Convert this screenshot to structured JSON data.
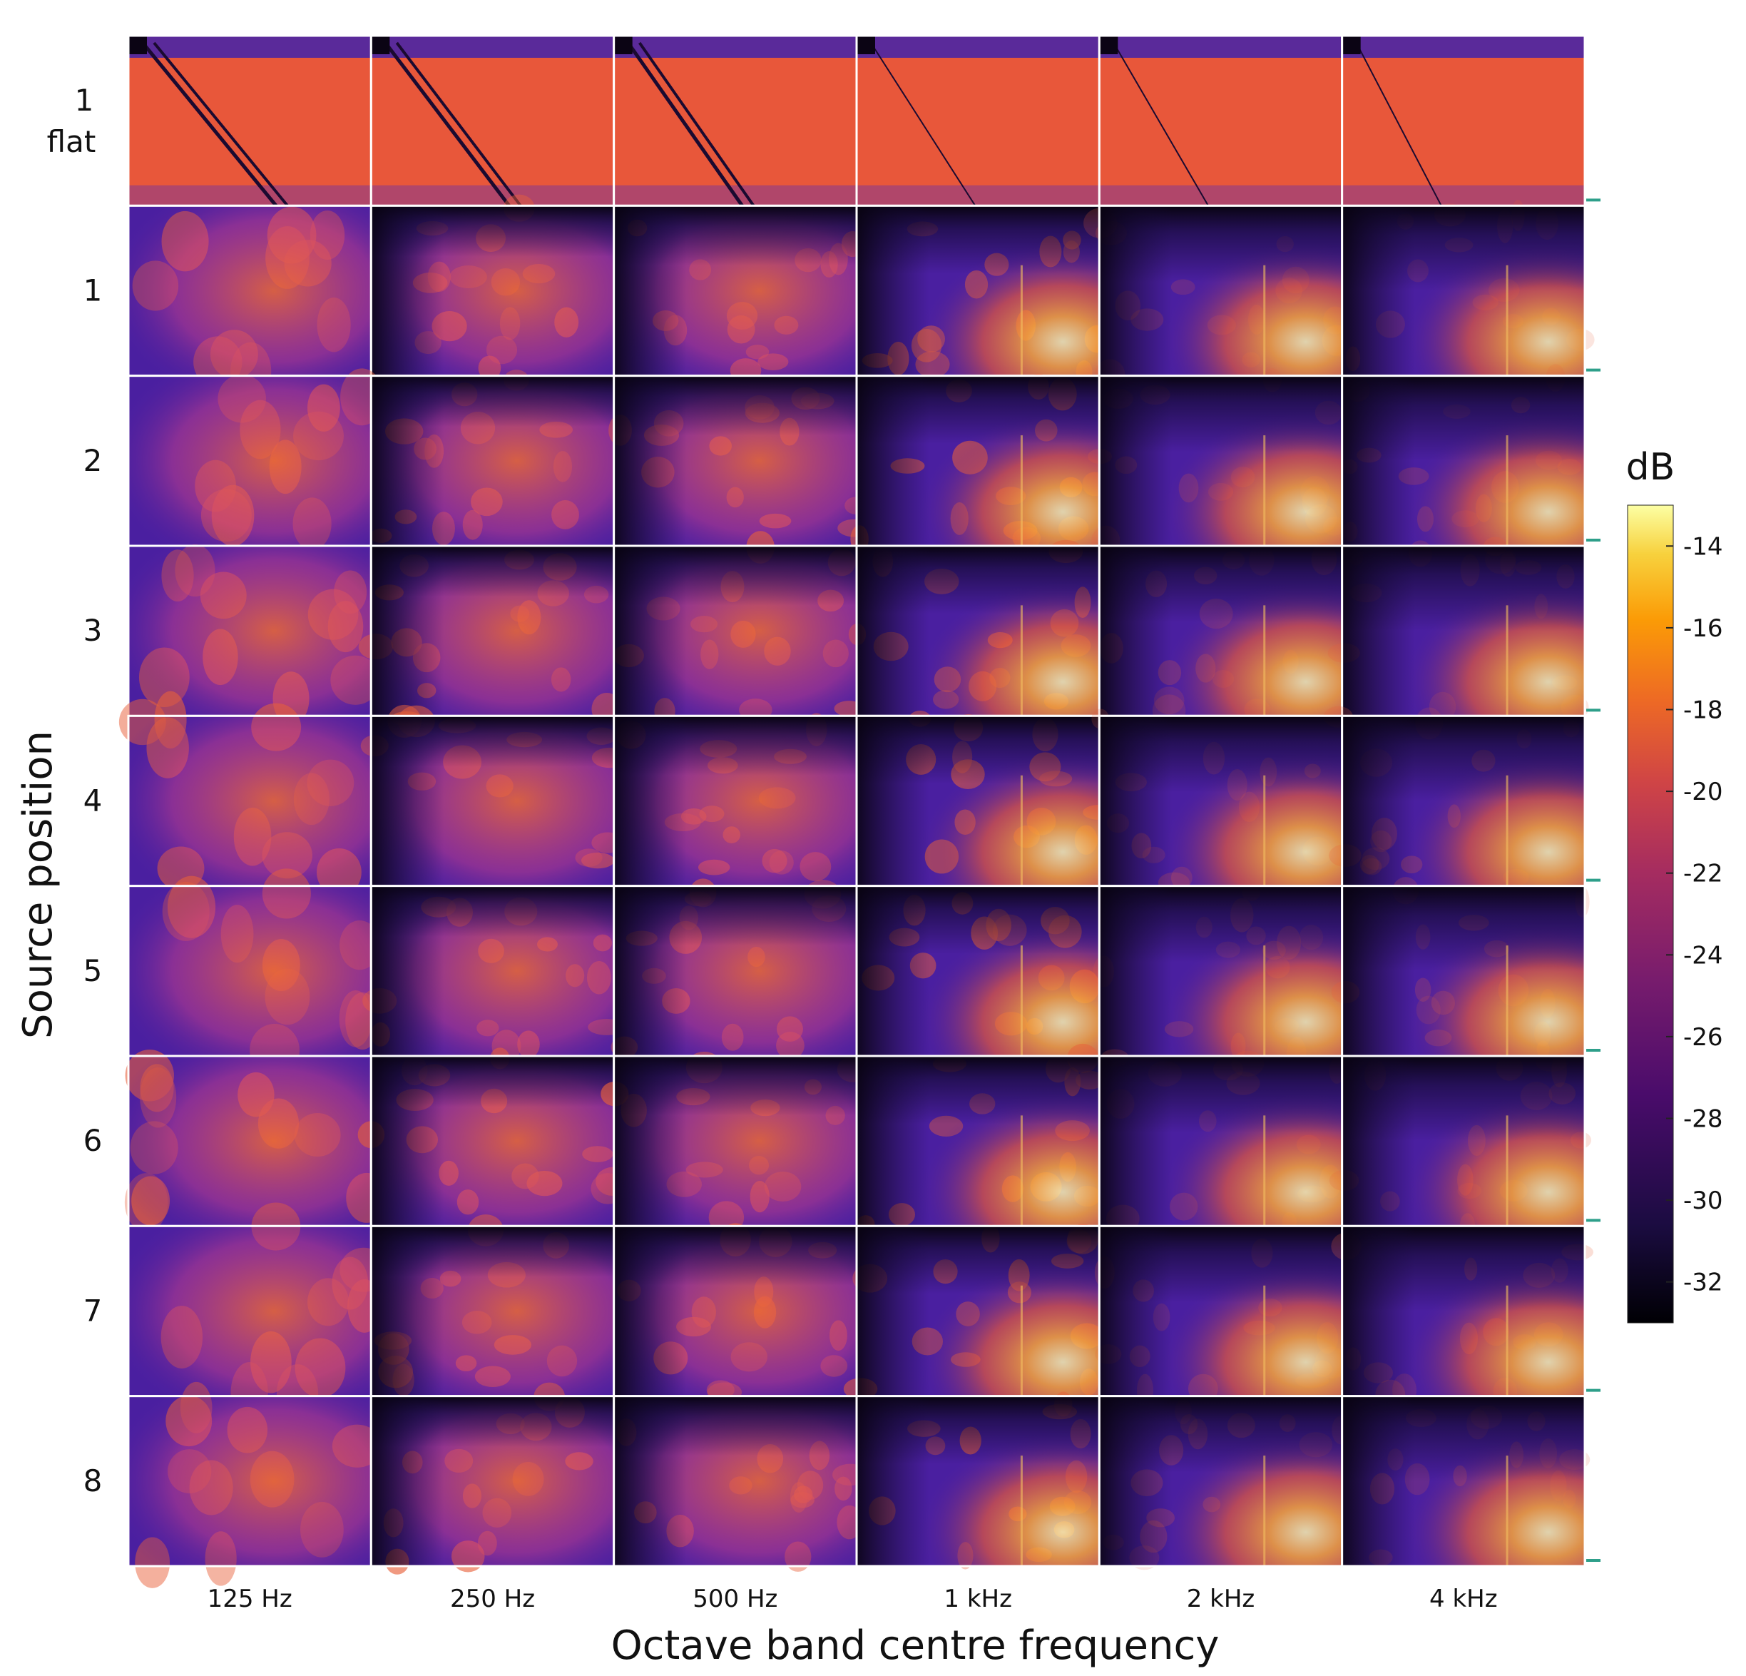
{
  "chart_data": {
    "type": "heatmap",
    "title": "",
    "xlabel": "Octave band centre frequency",
    "ylabel": "Source position",
    "columns": [
      "125 Hz",
      "250 Hz",
      "500 Hz",
      "1 kHz",
      "2 kHz",
      "4 kHz"
    ],
    "rows": [
      {
        "label": "1",
        "sublabel": "flat"
      },
      {
        "label": "1",
        "sublabel": ""
      },
      {
        "label": "2",
        "sublabel": ""
      },
      {
        "label": "3",
        "sublabel": ""
      },
      {
        "label": "4",
        "sublabel": ""
      },
      {
        "label": "5",
        "sublabel": ""
      },
      {
        "label": "6",
        "sublabel": ""
      },
      {
        "label": "7",
        "sublabel": ""
      },
      {
        "label": "8",
        "sublabel": ""
      }
    ],
    "colorbar": {
      "title": "dB",
      "ticks": [
        -14,
        -16,
        -18,
        -20,
        -22,
        -24,
        -26,
        -28,
        -30,
        -32
      ],
      "range": [
        -33,
        -13
      ],
      "colormap": "inferno"
    },
    "right_markers": 9,
    "grid": false,
    "legend": "colorbar-right"
  },
  "colors": {
    "panel_border": "#ffffff",
    "marker": "#2e9f8a",
    "flat_bg": "#e8573a",
    "dark": "#0b0414",
    "purple": "#4a1fa0",
    "orange": "#f07030",
    "yellow": "#f6e6a0"
  }
}
